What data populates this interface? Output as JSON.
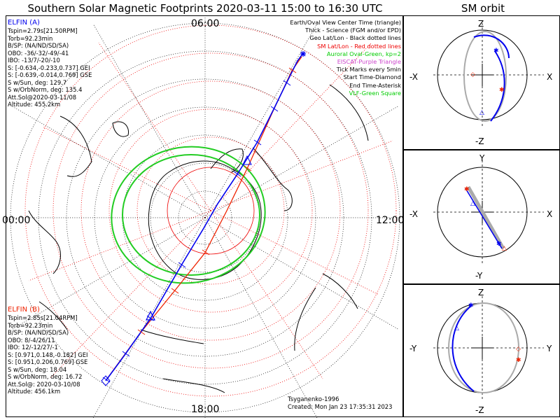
{
  "title": "Southern Solar Magnetic Footprints 2020-03-11 15:00 to 16:30 UTC",
  "sm_orbit_title": "SM orbit",
  "clock_labels": {
    "top": "06:00",
    "left": "00:00",
    "right": "12:00",
    "bottom": "18:00"
  },
  "elfin_a": {
    "name": "ELFIN (A)",
    "lines": [
      "Tspin=2.79s[21.50RPM]",
      "Torb=92.23min",
      "B/SP: (NA/ND/SD/SA)",
      "OBO: -36/-32/-49/-41",
      "IBO: -13/7/-20/-10",
      "S: [-0.634,-0.233,0.737] GEI",
      "S: [-0.639,-0.014,0.769] GSE",
      "S w/Sun, deg: 129.7",
      "S w/OrbNorm, deg: 135.4",
      "Att.Sol@2020-03-11/08",
      "Altitude: 455.2km"
    ],
    "color": "#0000ee"
  },
  "elfin_b": {
    "name": "ELFIN (B)",
    "lines": [
      "Tspin=2.85s[21.04RPM]",
      "Torb=92.23min",
      "B/SP: (NA/ND/SD/SA)",
      "OBO: 8/-4/26/11",
      "IBO: 12/-12/27/-1",
      "S: [0.971,0.148,-0.182] GEI",
      "S: [0.951,0.206,0.769] GSE",
      "S w/Sun, deg: 18.04",
      "S w/OrbNorm, deg: 16.72",
      "Att.Sol@: 2020-03-10/08",
      "Altitude: 456.1km"
    ],
    "color": "#ee2200"
  },
  "legend": [
    {
      "text": "Earth/Oval View Center Time (triangle)",
      "color": "#000000"
    },
    {
      "text": "Thick - Science (FGM and/or EPD)",
      "color": "#000000"
    },
    {
      "text": "Geo Lat/Lon - Black dotted lines",
      "color": "#000000"
    },
    {
      "text": "SM Lat/Lon - Red dotted lines",
      "color": "#ee0000"
    },
    {
      "text": "Auroral Oval-Green, kp=2",
      "color": "#00cc00"
    },
    {
      "text": "EISCAT-Purple Triangle",
      "color": "#cc44cc"
    },
    {
      "text": "Tick Marks every 5min",
      "color": "#000000"
    },
    {
      "text": "Start Time-Diamond",
      "color": "#000000"
    },
    {
      "text": "End Time-Asterisk",
      "color": "#000000"
    },
    {
      "text": "VLF-Green Square",
      "color": "#00cc00"
    }
  ],
  "credit": {
    "author": "Tsyganenko-1996",
    "created": "Created: Mon Jan 23 17:35:31 2023"
  },
  "orbit_panels": [
    {
      "top": "Z",
      "bottom": "-Z",
      "left": "-X",
      "right": "X"
    },
    {
      "top": "Y",
      "bottom": "-Y",
      "left": "-X",
      "right": "X"
    },
    {
      "top": "Z",
      "bottom": "-Z",
      "left": "-Y",
      "right": "Y"
    }
  ],
  "colors": {
    "auroral_oval": "#22cc22",
    "sm_grid": "#ee0000",
    "geo_grid": "#000000"
  }
}
